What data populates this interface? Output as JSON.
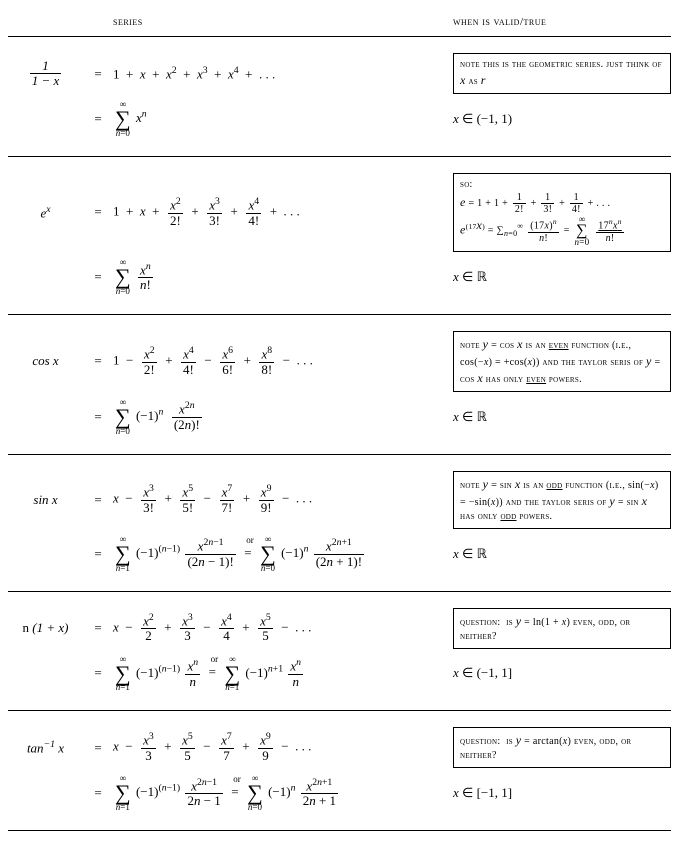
{
  "headers": {
    "series": "series",
    "valid": "when is valid/true"
  },
  "rows": [
    {
      "func_html": "<span class='frac'><span class='num'>1</span><span class='den'>1 − <i>x</i></span></span>",
      "expansion_html": "1 &nbsp;+&nbsp; <i>x</i> &nbsp;+&nbsp; <i>x</i><sup>2</sup> &nbsp;+&nbsp; <i>x</i><sup>3</sup> &nbsp;+&nbsp; <i>x</i><sup>4</sup> &nbsp;+&nbsp; . . .",
      "sigma_html": "<span class='bigsum'><span class='top'>∞</span><span class='mid'>∑</span><span class='bot'><i>n</i>=0</span></span> <i>x</i><sup><i>n</i></sup>",
      "note_html": "note this is the geometric series. just think of <span class='mathnormal'>x</span> as <span class='mathnormal'>r</span>",
      "domain_html": "<i>x</i> ∈ (−1, 1)"
    },
    {
      "func_html": "<i>e</i><sup><i>x</i></sup>",
      "expansion_html": "1 &nbsp;+&nbsp; <i>x</i> &nbsp;+&nbsp; <span class='frac'><span class='num'><i>x</i><sup>2</sup></span><span class='den'>2!</span></span> &nbsp;+&nbsp; <span class='frac'><span class='num'><i>x</i><sup>3</sup></span><span class='den'>3!</span></span> &nbsp;+&nbsp; <span class='frac'><span class='num'><i>x</i><sup>4</sup></span><span class='den'>4!</span></span> &nbsp;+&nbsp; . . .",
      "sigma_html": "<span class='bigsum'><span class='top'>∞</span><span class='mid'>∑</span><span class='bot'><i>n</i>=0</span></span> <span class='frac'><span class='num'><i>x</i><sup><i>n</i></sup></span><span class='den'><i>n</i>!</span></span>",
      "note_html": "so:<br><span class='mathnormal'>e</span> = 1 + 1 + <span style='font-variant:normal'><span class='frac' style='font-size:10px'><span class='num'>1</span><span class='den'>2!</span></span> + <span class='frac' style='font-size:10px'><span class='num'>1</span><span class='den'>3!</span></span> + <span class='frac' style='font-size:10px'><span class='num'>1</span><span class='den'>4!</span></span></span> + . . .<br><span class='mathnormal'>e</span><sup>(17<span class='mathnormal'>x</span>)</sup> = <span style='font-variant:normal'>∑<sub style='font-size:8px'><i>n</i>=0</sub><sup style='font-size:8px'>∞</sup> <span class='frac' style='font-size:10px'><span class='num'>(17<i>x</i>)<sup><i>n</i></sup></span><span class='den'><i>n</i>!</span></span> = <span class='bigsum' style='font-size:10px'><span class='top'>∞</span><span class='mid' style='font-size:16px'>∑</span><span class='bot'><i>n</i>=0</span></span> <span class='frac' style='font-size:10px'><span class='num u'>17<sup><i>n</i></sup><i>x</i><sup><i>n</i></sup></span><span class='den'><i>n</i>!</span></span></span>",
      "domain_html": "<i>x</i> ∈ ℝ"
    },
    {
      "func_html": "cos <i>x</i>",
      "expansion_html": "1 &nbsp;−&nbsp; <span class='frac'><span class='num'><i>x</i><sup>2</sup></span><span class='den'>2!</span></span> &nbsp;+&nbsp; <span class='frac'><span class='num'><i>x</i><sup>4</sup></span><span class='den'>4!</span></span> &nbsp;−&nbsp; <span class='frac'><span class='num'><i>x</i><sup>6</sup></span><span class='den'>6!</span></span> &nbsp;+&nbsp; <span class='frac'><span class='num'><i>x</i><sup>8</sup></span><span class='den'>8!</span></span> &nbsp;−&nbsp; . . .",
      "sigma_html": "<span class='bigsum'><span class='top'>∞</span><span class='mid'>∑</span><span class='bot'><i>n</i>=0</span></span> (−1)<sup><i>n</i></sup> &nbsp;<span class='frac'><span class='num'><i>x</i><sup>2<i>n</i></sup></span><span class='den'>(2<i>n</i>)!</span></span>",
      "note_html": "note <span class='mathnormal'>y</span> = cos <span class='mathnormal'>x</span> is an <span class='u'>even</span> function (i.e., <span style='font-variant:normal'>cos(−<i>x</i>) = +cos(<i>x</i>)</span>) and the taylor seris of <span class='mathnormal'>y</span> = cos <span class='mathnormal'>x</span> has only <span class='u'>even</span> powers.",
      "domain_html": "<i>x</i> ∈ ℝ"
    },
    {
      "func_html": "sin <i>x</i>",
      "expansion_html": "<i>x</i> &nbsp;−&nbsp; <span class='frac'><span class='num'><i>x</i><sup>3</sup></span><span class='den'>3!</span></span> &nbsp;+&nbsp; <span class='frac'><span class='num'><i>x</i><sup>5</sup></span><span class='den'>5!</span></span> &nbsp;−&nbsp; <span class='frac'><span class='num'><i>x</i><sup>7</sup></span><span class='den'>7!</span></span> &nbsp;+&nbsp; <span class='frac'><span class='num'><i>x</i><sup>9</sup></span><span class='den'>9!</span></span> &nbsp;−&nbsp; . . .",
      "sigma_html": "<span class='bigsum'><span class='top'>∞</span><span class='mid'>∑</span><span class='bot'><i>n</i>=1</span></span> (−1)<sup>(<i>n</i>−1)</sup> <span class='frac'><span class='num'><i>x</i><sup>2<i>n</i>−1</sup></span><span class='den'>(2<i>n</i> − 1)!</span></span> &nbsp;<span style='position:relative'><span style='font-size:9px;position:absolute;top:-10px;left:2px'>or</span>=</span>&nbsp; <span class='bigsum'><span class='top'>∞</span><span class='mid'>∑</span><span class='bot'><i>n</i>=0</span></span> (−1)<sup><i>n</i></sup> <span class='frac'><span class='num'><i>x</i><sup>2<i>n</i>+1</sup></span><span class='den'>(2<i>n</i> + 1)!</span></span>",
      "note_html": "note <span class='mathnormal'>y</span> = sin <span class='mathnormal'>x</span> is an <span class='u'>odd</span> function (i.e., <span style='font-variant:normal'>sin(−<i>x</i>) = −sin(<i>x</i>)</span>) and the taylor seris of <span class='mathnormal'>y</span> = sin <span class='mathnormal'>x</span> has only <span class='u'>odd</span> powers.",
      "domain_html": "<i>x</i> ∈ ℝ"
    },
    {
      "func_html": "<span style='font-style:normal'>n</span> (1 + <i>x</i>)",
      "expansion_html": "<i>x</i> &nbsp;−&nbsp; <span class='frac'><span class='num'><i>x</i><sup>2</sup></span><span class='den'>2</span></span> &nbsp;+&nbsp; <span class='frac'><span class='num'><i>x</i><sup>3</sup></span><span class='den'>3</span></span> &nbsp;−&nbsp; <span class='frac'><span class='num'><i>x</i><sup>4</sup></span><span class='den'>4</span></span> &nbsp;+&nbsp; <span class='frac'><span class='num'><i>x</i><sup>5</sup></span><span class='den'>5</span></span> &nbsp;−&nbsp; . . .",
      "sigma_html": "<span class='bigsum'><span class='top'>∞</span><span class='mid'>∑</span><span class='bot'><i>n</i>=1</span></span> (−1)<sup>(<i>n</i>−1)</sup> <span class='frac'><span class='num'><i>x</i><sup><i>n</i></sup></span><span class='den'><i>n</i></span></span> &nbsp;<span style='position:relative'><span style='font-size:9px;position:absolute;top:-10px;left:2px'>or</span>=</span>&nbsp; <span class='bigsum'><span class='top'>∞</span><span class='mid'>∑</span><span class='bot'><i>n</i>=1</span></span> (−1)<sup><i>n</i>+1</sup> <span class='frac'><span class='num'><i>x</i><sup><i>n</i></sup></span><span class='den'><i>n</i></span></span>",
      "note_html": "question: &nbsp;is <span class='mathnormal'>y</span> = <span style='font-variant:normal'>ln(1 + <i>x</i>)</span> even, odd, or neither?",
      "domain_html": "<i>x</i> ∈ (−1, 1]"
    },
    {
      "func_html": "tan<sup>−1</sup> <i>x</i>",
      "expansion_html": "<i>x</i> &nbsp;−&nbsp; <span class='frac'><span class='num'><i>x</i><sup>3</sup></span><span class='den'>3</span></span> &nbsp;+&nbsp; <span class='frac'><span class='num'><i>x</i><sup>5</sup></span><span class='den'>5</span></span> &nbsp;−&nbsp; <span class='frac'><span class='num'><i>x</i><sup>7</sup></span><span class='den'>7</span></span> &nbsp;+&nbsp; <span class='frac'><span class='num'><i>x</i><sup>9</sup></span><span class='den'>9</span></span> &nbsp;−&nbsp; . . .",
      "sigma_html": "<span class='bigsum'><span class='top'>∞</span><span class='mid'>∑</span><span class='bot'><i>n</i>=1</span></span> (−1)<sup>(<i>n</i>−1)</sup> <span class='frac'><span class='num'><i>x</i><sup>2<i>n</i>−1</sup></span><span class='den'>2<i>n</i> − 1</span></span> &nbsp;<span style='position:relative'><span style='font-size:9px;position:absolute;top:-10px;left:2px'>or</span>=</span>&nbsp; <span class='bigsum'><span class='top'>∞</span><span class='mid'>∑</span><span class='bot'><i>n</i>=0</span></span> (−1)<sup><i>n</i></sup> <span class='frac'><span class='num'><i>x</i><sup>2<i>n</i>+1</sup></span><span class='den'>2<i>n</i> + 1</span></span>",
      "note_html": "question: &nbsp;is <span class='mathnormal'>y</span> = <span style='font-variant:normal'>arctan(<i>x</i>)</span> even, odd, or neither?",
      "domain_html": "<i>x</i> ∈ [−1, 1]"
    }
  ]
}
